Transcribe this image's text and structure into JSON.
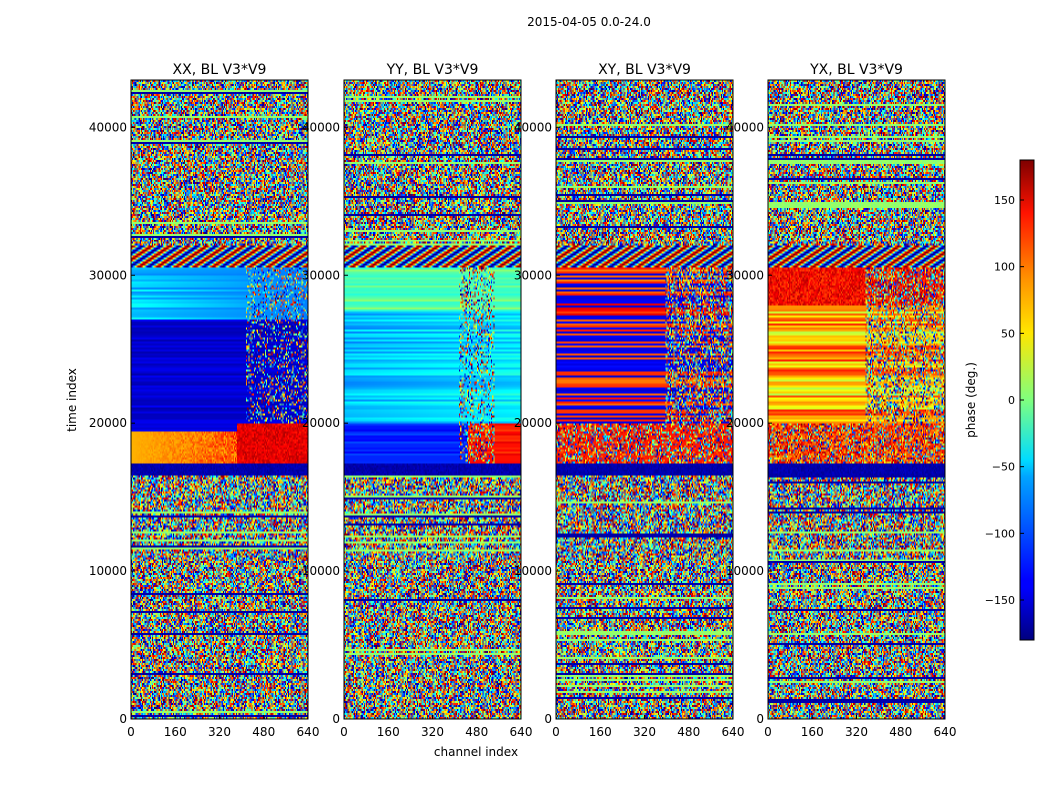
{
  "figure": {
    "suptitle": "2015-04-05 0.0-24.0"
  },
  "chart_data": {
    "type": "heatmap",
    "xlabel": "channel index",
    "ylabel": "time index",
    "x_ticks": [
      0,
      160,
      320,
      480,
      640
    ],
    "y_ticks": [
      0,
      10000,
      20000,
      30000,
      40000
    ],
    "xlim": [
      0,
      640
    ],
    "ylim": [
      0,
      43200
    ],
    "colormap": "jet",
    "panels": [
      {
        "title": "XX, BL V3*V9",
        "kind": "XX"
      },
      {
        "title": "YY, BL V3*V9",
        "kind": "YY"
      },
      {
        "title": "XY, BL V3*V9",
        "kind": "XY"
      },
      {
        "title": "YX, BL V3*V9",
        "kind": "YX"
      }
    ],
    "colorbar": {
      "label": "phase (deg.)",
      "range": [
        -180,
        180
      ],
      "ticks": [
        -150,
        -100,
        -50,
        0,
        50,
        100,
        150
      ],
      "tick_labels": [
        "−150",
        "−100",
        "−50",
        "0",
        "50",
        "100",
        "150"
      ]
    }
  }
}
